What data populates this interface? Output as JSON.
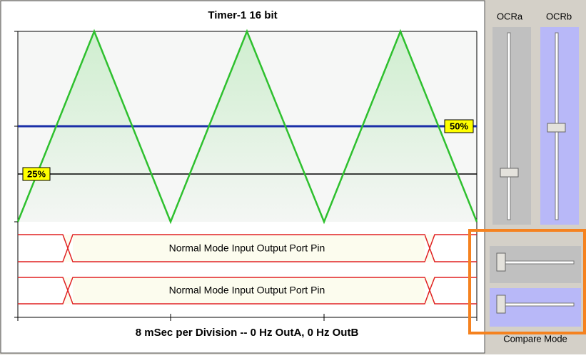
{
  "scope": {
    "title": "Timer-1 16 bit",
    "footer": "8 mSec per Division -- 0 Hz OutA,  0 Hz OutB",
    "marker_a": "50%",
    "marker_b": "25%",
    "lanes": [
      "Normal Mode  Input Output Port Pin",
      "Normal Mode  Input Output Port Pin"
    ]
  },
  "controls": {
    "ocra_label": "OCRa",
    "ocrb_label": "OCRb",
    "compare_mode_label": "Compare Mode"
  }
}
